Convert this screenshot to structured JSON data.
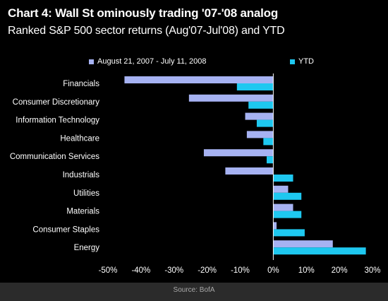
{
  "chart_data": {
    "type": "bar",
    "orientation": "horizontal",
    "title": "Chart 4: Wall St ominously trading '07-'08 analog",
    "subtitle": "Ranked S&P 500 sector returns (Aug'07-Jul'08) and YTD",
    "categories": [
      "Financials",
      "Consumer Discretionary",
      "Information Technology",
      "Healthcare",
      "Communication Services",
      "Industrials",
      "Utilities",
      "Materials",
      "Consumer Staples",
      "Energy"
    ],
    "series": [
      {
        "name": "August 21, 2007 - July 11, 2008",
        "color": "#a6b2f2",
        "values": [
          -45,
          -25.5,
          -8.5,
          -8,
          -21,
          -14.5,
          4.5,
          6,
          1,
          18
        ]
      },
      {
        "name": "YTD",
        "color": "#1ec8f0",
        "values": [
          -11,
          -7.5,
          -5,
          -3,
          -2,
          6,
          8.5,
          8.5,
          9.5,
          28
        ]
      }
    ],
    "xlim": [
      -50,
      30
    ],
    "xticks": [
      -50,
      -40,
      -30,
      -20,
      -10,
      0,
      10,
      20,
      30
    ],
    "xtick_labels": [
      "-50%",
      "-40%",
      "-30%",
      "-20%",
      "-10%",
      "0%",
      "10%",
      "20%",
      "30%"
    ],
    "legend_position": "top",
    "grid": false,
    "source": "Source: BofA",
    "background": "#000000"
  }
}
